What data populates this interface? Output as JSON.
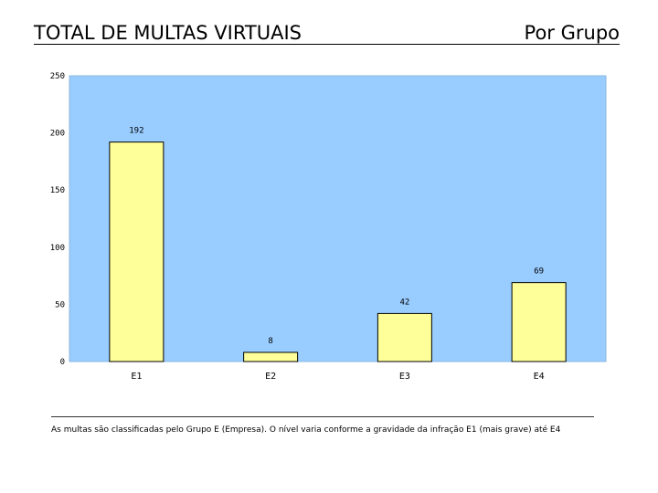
{
  "header": {
    "title": "TOTAL DE MULTAS VIRTUAIS",
    "subtitle": "Por Grupo"
  },
  "chart_data": {
    "type": "bar",
    "categories": [
      "E1",
      "E2",
      "E3",
      "E4"
    ],
    "values": [
      192,
      8,
      42,
      69
    ],
    "data_labels": [
      "192",
      "8",
      "42",
      "69"
    ],
    "ylim": [
      0,
      250
    ],
    "yticks": [
      0,
      50,
      100,
      150,
      200,
      250
    ],
    "title": "",
    "xlabel": "",
    "ylabel": "",
    "grid": false,
    "legend": "none",
    "colors": {
      "plot_background": "#99CCFF",
      "bar_fill": "#FFFF99",
      "bar_stroke": "#000000"
    }
  },
  "footer": {
    "note": "As multas são classificadas pelo Grupo E (Empresa). O nível varia conforme a gravidade da infração E1 (mais grave) até E4"
  }
}
